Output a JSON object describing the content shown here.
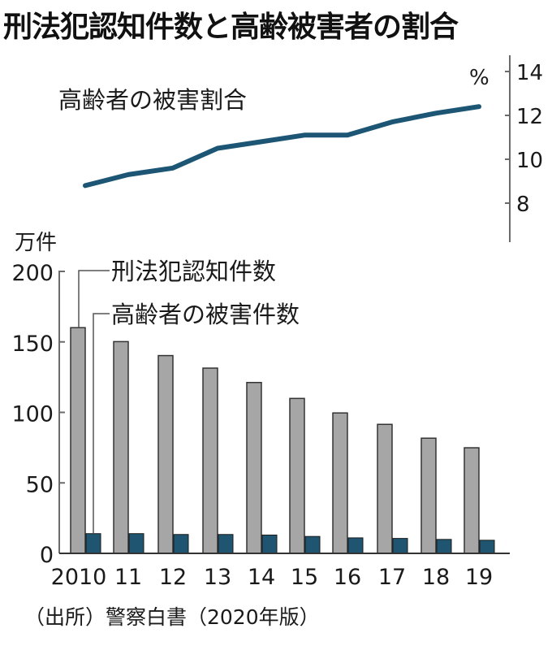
{
  "title": "刑法犯認知件数と高齢被害者の割合",
  "source": "（出所）警察白書（2020年版）",
  "colors": {
    "line": "#1d5674",
    "bar_total": "#a6a6a6",
    "bar_elderly": "#1f5570",
    "axis": "#6b6b6b"
  },
  "chart_data": [
    {
      "type": "line",
      "title": "高齢者の被害割合",
      "ylabel": "%",
      "ylim": [
        6.3,
        14.7
      ],
      "yticks": [
        8,
        10,
        12,
        14
      ],
      "axis_side": "right",
      "x": [
        "2010",
        "11",
        "12",
        "13",
        "14",
        "15",
        "16",
        "17",
        "18",
        "19"
      ],
      "series": [
        {
          "name": "高齢者の被害割合",
          "values": [
            8.8,
            9.3,
            9.6,
            10.5,
            10.8,
            11.1,
            11.1,
            11.7,
            12.1,
            12.4
          ]
        }
      ]
    },
    {
      "type": "bar",
      "ylabel": "万件",
      "ylim": [
        0,
        200
      ],
      "yticks": [
        0,
        50,
        100,
        150,
        200
      ],
      "categories": [
        "2010",
        "11",
        "12",
        "13",
        "14",
        "15",
        "16",
        "17",
        "18",
        "19"
      ],
      "series": [
        {
          "name": "刑法犯認知件数",
          "values": [
            160.1,
            150.2,
            140.3,
            131.4,
            121.2,
            109.9,
            99.6,
            91.5,
            81.7,
            74.9
          ]
        },
        {
          "name": "高齢者の被害件数",
          "values": [
            14.0,
            14.0,
            13.4,
            13.4,
            13.0,
            12.0,
            11.0,
            10.6,
            9.9,
            9.3
          ]
        }
      ],
      "legend_position": "inline-top-left"
    }
  ],
  "labels": {
    "line_title": "高齢者の被害割合",
    "pct_unit": "%",
    "bar_unit": "万件",
    "legend_total": "刑法犯認知件数",
    "legend_elderly": "高齢者の被害件数"
  }
}
